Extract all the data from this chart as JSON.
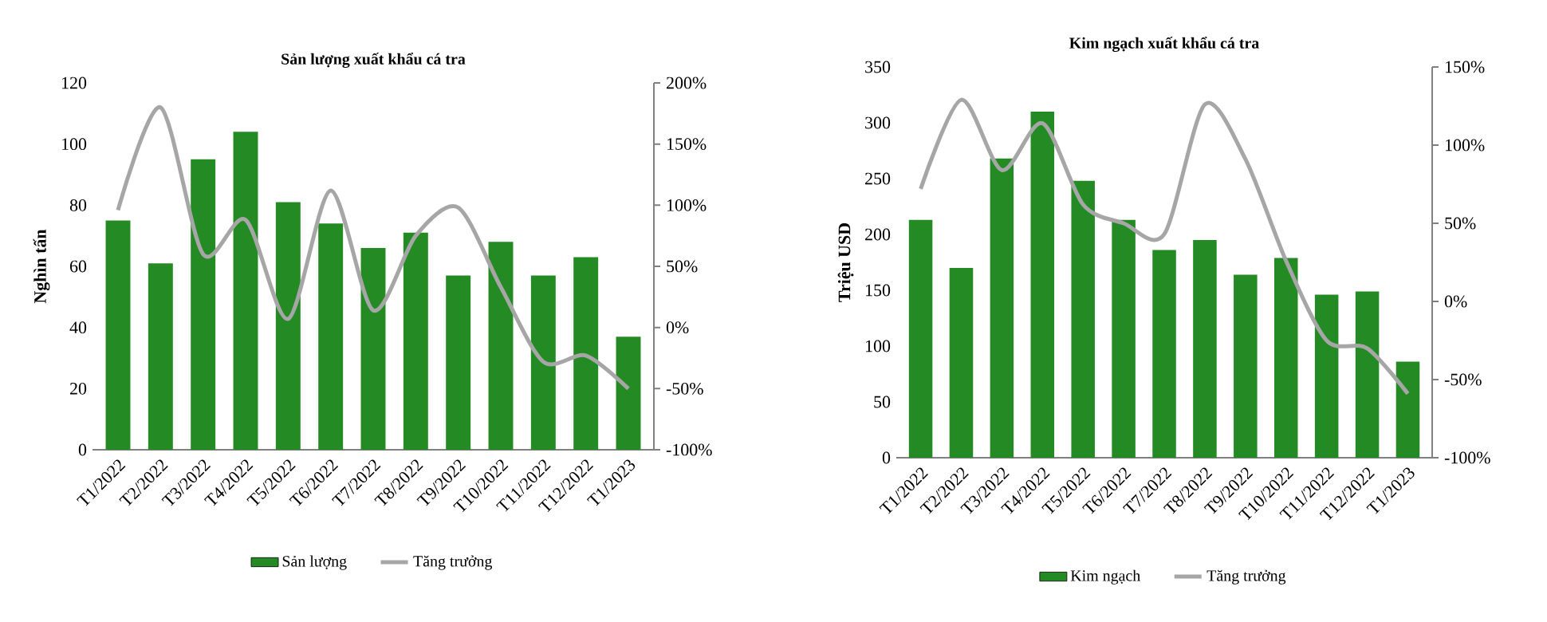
{
  "chart_data": [
    {
      "type": "bar",
      "title": "Sản lượng xuất khẩu cá tra",
      "ylabel": "Nghìn tấn",
      "categories": [
        "T1/2022",
        "T2/2022",
        "T3/2022",
        "T4/2022",
        "T5/2022",
        "T6/2022",
        "T7/2022",
        "T8/2022",
        "T9/2022",
        "T10/2022",
        "T11/2022",
        "T12/2022",
        "T1/2023"
      ],
      "series": [
        {
          "name": "Sản lượng",
          "color": "#248a24",
          "values": [
            75,
            61,
            95,
            104,
            81,
            74,
            66,
            71,
            57,
            68,
            57,
            63,
            37
          ]
        },
        {
          "name": "Tăng trưởng",
          "type": "line",
          "axis": "y2",
          "color": "#a6a6a6",
          "values": [
            96,
            180,
            60,
            88,
            7,
            112,
            14,
            75,
            98,
            33,
            -28,
            -23,
            -50
          ]
        }
      ],
      "ylim": [
        0,
        120
      ],
      "yticks": [
        0,
        20,
        40,
        60,
        80,
        100,
        120
      ],
      "y2lim": [
        -100,
        200
      ],
      "y2ticks": [
        {
          "value": -100,
          "label": "-100%"
        },
        {
          "value": -50,
          "label": "-50%"
        },
        {
          "value": 0,
          "label": "0%"
        },
        {
          "value": 50,
          "label": "50%"
        },
        {
          "value": 100,
          "label": "100%"
        },
        {
          "value": 150,
          "label": "150%"
        },
        {
          "value": 200,
          "label": "200%"
        }
      ],
      "legend": "bottom"
    },
    {
      "type": "bar",
      "title": "Kim ngạch xuất khẩu cá tra",
      "ylabel": "Triệu USD",
      "categories": [
        "T1/2022",
        "T2/2022",
        "T3/2022",
        "T4/2022",
        "T5/2022",
        "T6/2022",
        "T7/2022",
        "T8/2022",
        "T9/2022",
        "T10/2022",
        "T11/2022",
        "T12/2022",
        "T1/2023"
      ],
      "series": [
        {
          "name": "Kim ngạch",
          "color": "#248a24",
          "values": [
            213,
            170,
            268,
            310,
            248,
            213,
            186,
            195,
            164,
            179,
            146,
            149,
            86
          ]
        },
        {
          "name": "Tăng trưởng",
          "type": "line",
          "axis": "y2",
          "color": "#a6a6a6",
          "values": [
            72,
            129,
            84,
            114,
            62,
            50,
            43,
            126,
            91,
            26,
            -25,
            -30,
            -59
          ]
        }
      ],
      "ylim": [
        0,
        350
      ],
      "yticks": [
        0,
        50,
        100,
        150,
        200,
        250,
        300,
        350
      ],
      "y2lim": [
        -100,
        150
      ],
      "y2ticks": [
        {
          "value": -100,
          "label": "-100%"
        },
        {
          "value": -50,
          "label": "-50%"
        },
        {
          "value": 0,
          "label": "0%"
        },
        {
          "value": 50,
          "label": "50%"
        },
        {
          "value": 100,
          "label": "100%"
        },
        {
          "value": 150,
          "label": "150%"
        }
      ],
      "legend": "bottom"
    }
  ]
}
